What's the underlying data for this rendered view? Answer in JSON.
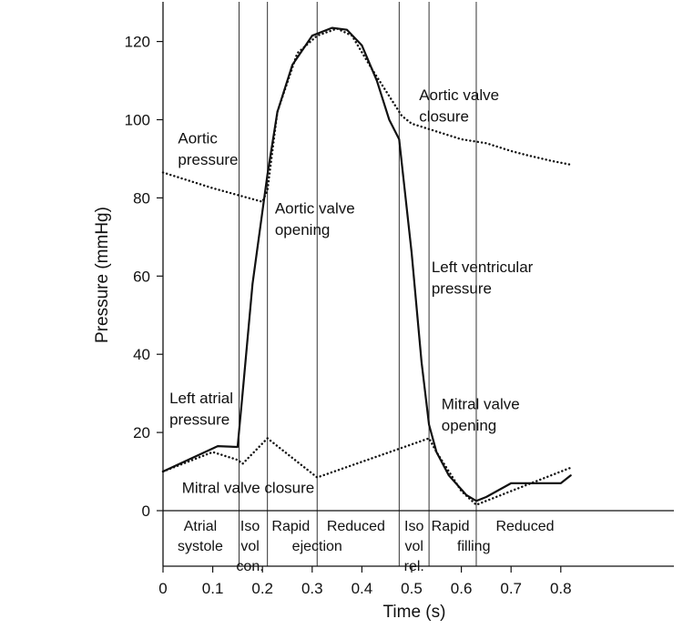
{
  "chart_data": {
    "type": "line",
    "xlabel": "Time (s)",
    "ylabel": "Pressure (mmHg)",
    "xlim": [
      0,
      0.82
    ],
    "ylim": [
      0,
      130
    ],
    "x_ticks": [
      0,
      0.1,
      0.2,
      0.3,
      0.4,
      0.5,
      0.6,
      0.7,
      0.8
    ],
    "y_ticks": [
      0,
      20,
      40,
      60,
      80,
      100,
      120
    ],
    "grid": false,
    "series": [
      {
        "name": "Left ventricular pressure",
        "style": "solid",
        "points": [
          [
            0,
            10
          ],
          [
            0.11,
            16.5
          ],
          [
            0.15,
            16.3
          ],
          [
            0.16,
            30
          ],
          [
            0.18,
            58
          ],
          [
            0.21,
            86
          ],
          [
            0.23,
            102
          ],
          [
            0.26,
            114
          ],
          [
            0.3,
            121.5
          ],
          [
            0.34,
            123.5
          ],
          [
            0.37,
            123
          ],
          [
            0.4,
            119
          ],
          [
            0.43,
            110
          ],
          [
            0.455,
            100
          ],
          [
            0.475,
            95
          ],
          [
            0.5,
            66
          ],
          [
            0.52,
            38
          ],
          [
            0.535,
            22
          ],
          [
            0.55,
            15
          ],
          [
            0.575,
            9
          ],
          [
            0.61,
            4
          ],
          [
            0.63,
            2.5
          ],
          [
            0.65,
            3.5
          ],
          [
            0.7,
            7
          ],
          [
            0.75,
            7
          ],
          [
            0.8,
            7
          ],
          [
            0.82,
            9
          ]
        ]
      },
      {
        "name": "Aortic pressure",
        "style": "dotted",
        "points": [
          [
            0,
            86.5
          ],
          [
            0.1,
            82.5
          ],
          [
            0.2,
            79
          ],
          [
            0.21,
            82
          ],
          [
            0.23,
            102
          ],
          [
            0.27,
            117
          ],
          [
            0.31,
            121.5
          ],
          [
            0.35,
            123.3
          ],
          [
            0.38,
            121.5
          ],
          [
            0.42,
            113
          ],
          [
            0.46,
            105
          ],
          [
            0.48,
            101
          ],
          [
            0.5,
            99
          ],
          [
            0.55,
            97
          ],
          [
            0.6,
            95
          ],
          [
            0.65,
            94
          ],
          [
            0.7,
            92
          ],
          [
            0.73,
            91
          ],
          [
            0.78,
            89.5
          ],
          [
            0.82,
            88.5
          ]
        ]
      },
      {
        "name": "Left atrial pressure",
        "style": "dotted",
        "points": [
          [
            0,
            10
          ],
          [
            0.1,
            15
          ],
          [
            0.15,
            13
          ],
          [
            0.16,
            12
          ],
          [
            0.21,
            18.5
          ],
          [
            0.31,
            8.5
          ],
          [
            0.535,
            18.5
          ],
          [
            0.55,
            15
          ],
          [
            0.6,
            5
          ],
          [
            0.63,
            1.5
          ],
          [
            0.7,
            5
          ],
          [
            0.76,
            8
          ],
          [
            0.82,
            11
          ]
        ]
      }
    ],
    "event_lines_x": [
      0.153,
      0.21,
      0.31,
      0.475,
      0.535,
      0.63
    ],
    "annotations": [
      {
        "text": "Aortic",
        "x": 0.03,
        "y": 94
      },
      {
        "text": "pressure",
        "x": 0.03,
        "y": 88.5
      },
      {
        "text": "Aortic valve",
        "x": 0.515,
        "y": 105
      },
      {
        "text": "closure",
        "x": 0.515,
        "y": 99.5
      },
      {
        "text": "Aortic valve",
        "x": 0.225,
        "y": 76
      },
      {
        "text": "opening",
        "x": 0.225,
        "y": 70.5
      },
      {
        "text": "Left ventricular",
        "x": 0.54,
        "y": 61
      },
      {
        "text": "pressure",
        "x": 0.54,
        "y": 55.5
      },
      {
        "text": "Left atrial",
        "x": 0.013,
        "y": 27.5
      },
      {
        "text": "pressure",
        "x": 0.013,
        "y": 22
      },
      {
        "text": "Mitral valve",
        "x": 0.56,
        "y": 26
      },
      {
        "text": "opening",
        "x": 0.56,
        "y": 20.5
      },
      {
        "text": "Mitral valve closure",
        "x": 0.038,
        "y": 4.5
      }
    ],
    "phase_labels": [
      {
        "text": "Atrial",
        "x": 0.075,
        "line": 0
      },
      {
        "text": "systole",
        "x": 0.075,
        "line": 1
      },
      {
        "text": "Iso",
        "x": 0.175,
        "line": 0
      },
      {
        "text": "vol",
        "x": 0.175,
        "line": 1
      },
      {
        "text": "con.",
        "x": 0.175,
        "line": 2
      },
      {
        "text": "Rapid",
        "x": 0.257,
        "line": 0
      },
      {
        "text": "ejection",
        "x": 0.31,
        "line": 1
      },
      {
        "text": "Reduced",
        "x": 0.388,
        "line": 0
      },
      {
        "text": "Iso",
        "x": 0.505,
        "line": 0
      },
      {
        "text": "vol",
        "x": 0.505,
        "line": 1
      },
      {
        "text": "rel.",
        "x": 0.505,
        "line": 2
      },
      {
        "text": "Rapid",
        "x": 0.578,
        "line": 0
      },
      {
        "text": "filling",
        "x": 0.625,
        "line": 1
      },
      {
        "text": "Reduced",
        "x": 0.728,
        "line": 0
      }
    ]
  }
}
